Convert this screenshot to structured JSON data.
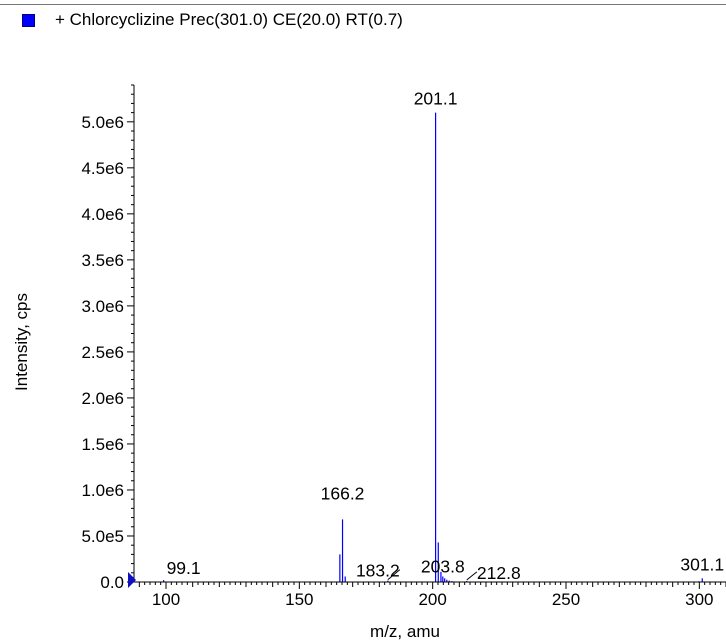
{
  "legend": {
    "label": "+ Chlorcyclizine Prec(301.0) CE(20.0) RT(0.7)",
    "swatch_color": "#0000ff"
  },
  "chart_data": {
    "type": "bar",
    "title": "+ Chlorcyclizine Prec(301.0) CE(20.0) RT(0.7)",
    "xlabel": "m/z, amu",
    "ylabel": "Intensity, cps",
    "xlim": [
      88,
      310
    ],
    "ylim": [
      0,
      5400000.0
    ],
    "x_ticks": [
      100,
      150,
      200,
      250,
      300
    ],
    "x_tick_labels": [
      "100",
      "150",
      "200",
      "250",
      "300"
    ],
    "y_ticks": [
      0,
      500000,
      1000000,
      1500000,
      2000000,
      2500000,
      3000000,
      3500000,
      4000000,
      4500000,
      5000000
    ],
    "y_tick_labels": [
      "0.0",
      "5.0e5",
      "1.0e6",
      "1.5e6",
      "2.0e6",
      "2.5e6",
      "3.0e6",
      "3.5e6",
      "4.0e6",
      "4.5e6",
      "5.0e6"
    ],
    "series_color": "#0000ff",
    "peaks": [
      {
        "mz": 99.1,
        "intensity": 20000,
        "label": "99.1"
      },
      {
        "mz": 165.2,
        "intensity": 300000
      },
      {
        "mz": 166.2,
        "intensity": 680000,
        "label": "166.2"
      },
      {
        "mz": 167.2,
        "intensity": 60000
      },
      {
        "mz": 183.2,
        "intensity": 15000,
        "label": "183.2"
      },
      {
        "mz": 201.1,
        "intensity": 5100000,
        "label": "201.1"
      },
      {
        "mz": 202.1,
        "intensity": 430000
      },
      {
        "mz": 203.1,
        "intensity": 110000
      },
      {
        "mz": 203.8,
        "intensity": 60000,
        "label": "203.8"
      },
      {
        "mz": 204.5,
        "intensity": 40000
      },
      {
        "mz": 205.3,
        "intensity": 25000
      },
      {
        "mz": 206.2,
        "intensity": 15000
      },
      {
        "mz": 207.2,
        "intensity": 10000
      },
      {
        "mz": 212.8,
        "intensity": 12000,
        "label": "212.8"
      },
      {
        "mz": 299.8,
        "intensity": 8000
      },
      {
        "mz": 301.1,
        "intensity": 40000,
        "label": "301.1"
      }
    ],
    "grid": false,
    "legend_position": "top-left"
  }
}
